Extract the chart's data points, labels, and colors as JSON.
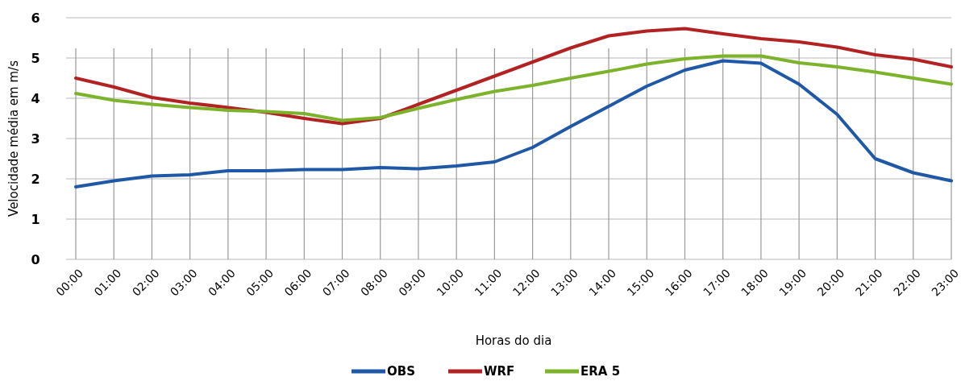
{
  "chart_data": {
    "type": "line",
    "xlabel": "Horas do dia",
    "ylabel": "Velocidade média em m/s",
    "categories": [
      "00:00",
      "01:00",
      "02:00",
      "03:00",
      "04:00",
      "05:00",
      "06:00",
      "07:00",
      "08:00",
      "09:00",
      "10:00",
      "11:00",
      "12:00",
      "13:00",
      "14:00",
      "15:00",
      "16:00",
      "17:00",
      "18:00",
      "19:00",
      "20:00",
      "21:00",
      "22:00",
      "23:00"
    ],
    "series": [
      {
        "name": "OBS",
        "color": "#1f58a6",
        "values": [
          1.8,
          1.95,
          2.07,
          2.1,
          2.2,
          2.2,
          2.23,
          2.23,
          2.28,
          2.25,
          2.32,
          2.42,
          2.78,
          3.3,
          3.8,
          4.3,
          4.7,
          4.93,
          4.87,
          4.35,
          3.6,
          2.5,
          2.15,
          1.95
        ]
      },
      {
        "name": "WRF",
        "color": "#b22222",
        "values": [
          4.5,
          4.28,
          4.02,
          3.88,
          3.77,
          3.65,
          3.5,
          3.37,
          3.5,
          3.85,
          4.2,
          4.55,
          4.9,
          5.25,
          5.55,
          5.67,
          5.73,
          5.6,
          5.48,
          5.4,
          5.27,
          5.08,
          4.97,
          4.78
        ]
      },
      {
        "name": "ERA 5",
        "color": "#7cb32b",
        "values": [
          4.12,
          3.95,
          3.85,
          3.77,
          3.7,
          3.67,
          3.62,
          3.45,
          3.52,
          3.75,
          3.97,
          4.17,
          4.32,
          4.5,
          4.67,
          4.85,
          4.98,
          5.05,
          5.05,
          4.88,
          4.78,
          4.65,
          4.5,
          4.35
        ]
      }
    ],
    "ylim": [
      0,
      6
    ],
    "yticks": [
      0,
      1,
      2,
      3,
      4,
      5,
      6
    ],
    "grid": true,
    "legend": "bottom",
    "marker": "none",
    "line_style": "solid"
  }
}
